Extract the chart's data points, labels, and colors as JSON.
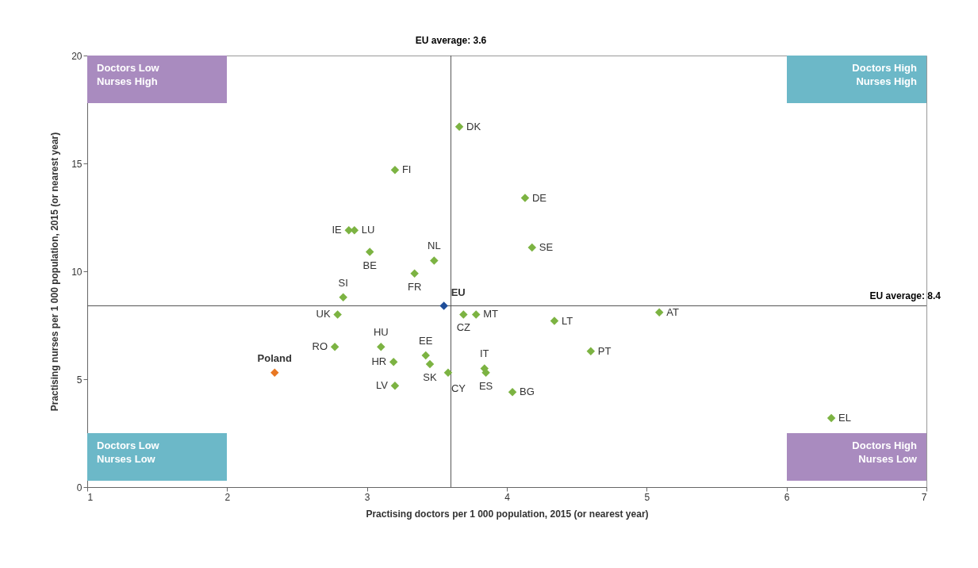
{
  "chart_data": {
    "type": "scatter",
    "xlabel": "Practising doctors per 1 000 population, 2015 (or nearest year)",
    "ylabel": "Practising nurses per 1 000 population, 2015 (or nearest year)",
    "xlim": [
      1,
      7
    ],
    "xticks": [
      1,
      2,
      3,
      4,
      5,
      6,
      7
    ],
    "ylim": [
      0,
      20
    ],
    "yticks": [
      0,
      5,
      10,
      15,
      20
    ],
    "grid": false,
    "marker": "diamond",
    "series": [
      {
        "color": "#7cb342",
        "x": [
          3.66,
          3.2,
          4.13,
          2.87,
          2.91,
          4.18,
          3.02,
          3.48,
          3.34,
          2.83,
          2.79,
          3.69,
          3.78,
          5.09,
          4.34,
          3.1,
          2.77,
          4.6,
          3.42,
          3.19,
          3.45,
          3.84,
          3.85,
          3.58,
          3.2,
          4.04,
          6.32
        ],
        "values": [
          16.7,
          14.7,
          13.4,
          11.9,
          11.9,
          11.1,
          10.9,
          10.5,
          9.9,
          8.8,
          8.0,
          8.0,
          8.0,
          8.1,
          7.7,
          6.5,
          6.5,
          6.3,
          6.1,
          5.8,
          5.7,
          5.5,
          5.3,
          5.3,
          4.7,
          4.4,
          3.2
        ],
        "value_labels": [
          "DK",
          "FI",
          "DE",
          "IE",
          "LU",
          "SE",
          "BE",
          "NL",
          "FR",
          "SI",
          "UK",
          "CZ",
          "MT",
          "AT",
          "LT",
          "HU",
          "RO",
          "PT",
          "EE",
          "HR",
          "SK",
          "IT",
          "ES",
          "CY",
          "LV",
          "BG",
          "EL"
        ]
      },
      {
        "color": "#1f4e99",
        "x": [
          3.55
        ],
        "values": [
          8.4
        ],
        "value_labels": [
          "EU"
        ]
      },
      {
        "color": "#e87722",
        "x": [
          2.34
        ],
        "values": [
          5.3
        ],
        "value_labels": [
          "Poland"
        ]
      }
    ],
    "ref_lines": [
      {
        "axis": "x",
        "value": 3.6,
        "label": "EU average: 3.6",
        "color": "#555555"
      },
      {
        "axis": "y",
        "value": 8.4,
        "label": "EU average: 8.4",
        "color": "#555555"
      }
    ],
    "annotations": [
      "Doctors Low\nNurses High",
      "Doctors High\nNurses High",
      "Doctors Low\nNurses Low",
      "Doctors High\nNurses Low"
    ]
  }
}
